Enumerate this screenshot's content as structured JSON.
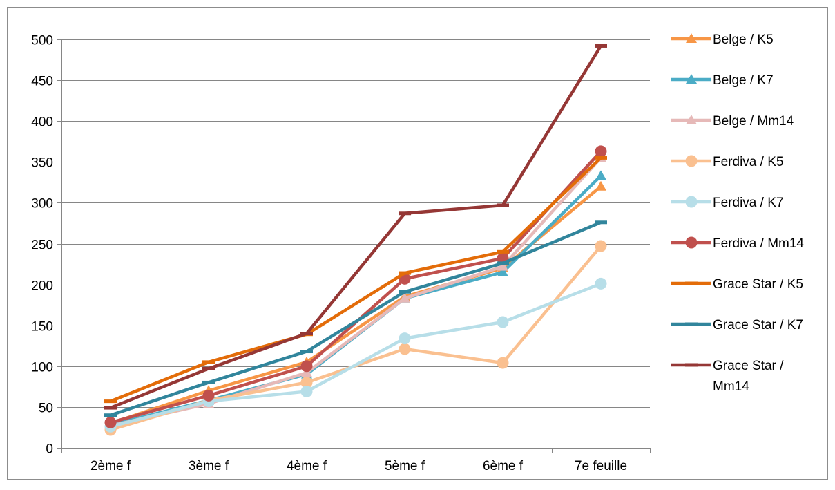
{
  "chart_data": {
    "type": "line",
    "title": "",
    "xlabel": "",
    "ylabel": "",
    "categories": [
      "2ème f",
      "3ème f",
      "4ème f",
      "5ème f",
      "6ème f",
      "7e feuille"
    ],
    "ylim": [
      0,
      500
    ],
    "yticks": [
      0,
      50,
      100,
      150,
      200,
      250,
      300,
      350,
      400,
      450,
      500
    ],
    "grid": true,
    "legend_position": "right",
    "series": [
      {
        "name": "Belge / K5",
        "marker": "triangle",
        "color": "#F79646",
        "values": [
          30,
          70,
          105,
          185,
          220,
          320
        ]
      },
      {
        "name": "Belge / K7",
        "marker": "triangle",
        "color": "#4BACC6",
        "values": [
          28,
          58,
          90,
          183,
          215,
          333
        ]
      },
      {
        "name": "Belge / Mm14",
        "marker": "triangle",
        "color": "#E6B9B8",
        "values": [
          27,
          54,
          92,
          183,
          222,
          355
        ]
      },
      {
        "name": "Ferdiva / K5",
        "marker": "circle",
        "color": "#FAC090",
        "values": [
          22,
          58,
          80,
          121,
          104,
          247
        ]
      },
      {
        "name": "Ferdiva / K7",
        "marker": "circle",
        "color": "#B7DEE8",
        "values": [
          26,
          57,
          69,
          134,
          154,
          201
        ]
      },
      {
        "name": "Ferdiva / Mm14",
        "marker": "circle",
        "color": "#C0504D",
        "values": [
          31,
          64,
          100,
          207,
          232,
          363
        ]
      },
      {
        "name": "Grace Star / K5",
        "marker": "dash",
        "color": "#E36C09",
        "values": [
          57,
          105,
          139,
          214,
          240,
          355
        ]
      },
      {
        "name": "Grace Star / K7",
        "marker": "dash",
        "color": "#31859C",
        "values": [
          40,
          80,
          118,
          191,
          226,
          276
        ]
      },
      {
        "name": "Grace Star / Mm14",
        "marker": "dash",
        "color": "#953735",
        "values": [
          49,
          97,
          140,
          287,
          297,
          492
        ]
      }
    ]
  }
}
